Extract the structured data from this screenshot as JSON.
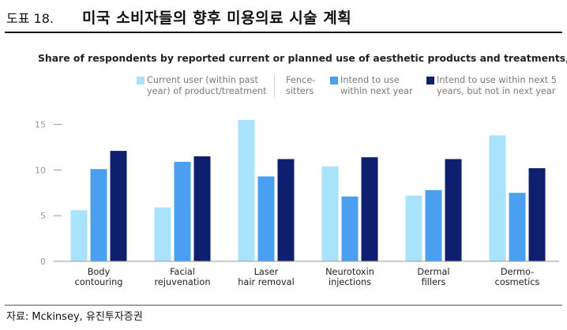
{
  "header": {
    "figure_label": "도표 18.",
    "figure_title": "미국 소비자들의 향후 미용의료 시술 계획"
  },
  "subtitle": {
    "text": "Share of respondents by reported current or planned use of aesthetic products and treatments,",
    "unit": "%"
  },
  "legend": {
    "current_user": "Current user (within past year) of product/treatment",
    "fence_sitters": "Fence-sitters",
    "intend_next_year": "Intend to use within next year",
    "intend_5_years": "Intend to use within next 5 years, but not in next year"
  },
  "colors": {
    "current_user": "#a8e3fb",
    "intend_next_year": "#4a9ff0",
    "intend_5_years": "#0d1f6e",
    "axis": "#9a9a9a",
    "gridline": "#d9d9d9"
  },
  "chart_data": {
    "type": "bar",
    "title": "Share of respondents by reported current or planned use of aesthetic products and treatments, %",
    "xlabel": "",
    "ylabel": "",
    "ylim": [
      0,
      16
    ],
    "yticks": [
      0,
      5,
      10,
      15
    ],
    "categories": [
      [
        "Body",
        "contouring"
      ],
      [
        "Facial",
        "rejuvenation"
      ],
      [
        "Laser",
        "hair removal"
      ],
      [
        "Neurotoxin",
        "injections"
      ],
      [
        "Dermal",
        "fillers"
      ],
      [
        "Dermo-",
        "cosmetics"
      ]
    ],
    "series": [
      {
        "name": "Current user (within past year) of product/treatment",
        "key": "current_user",
        "values": [
          5.6,
          5.9,
          15.5,
          10.4,
          7.2,
          13.8
        ]
      },
      {
        "name": "Intend to use within next year",
        "key": "intend_next_year",
        "values": [
          10.1,
          10.9,
          9.3,
          7.1,
          7.8,
          7.5
        ]
      },
      {
        "name": "Intend to use within next 5 years, but not in next year",
        "key": "intend_5_years",
        "values": [
          12.1,
          11.5,
          11.2,
          11.4,
          11.2,
          10.2
        ]
      }
    ]
  },
  "footer": {
    "source": "자료: Mckinsey, 유진투자증권"
  }
}
